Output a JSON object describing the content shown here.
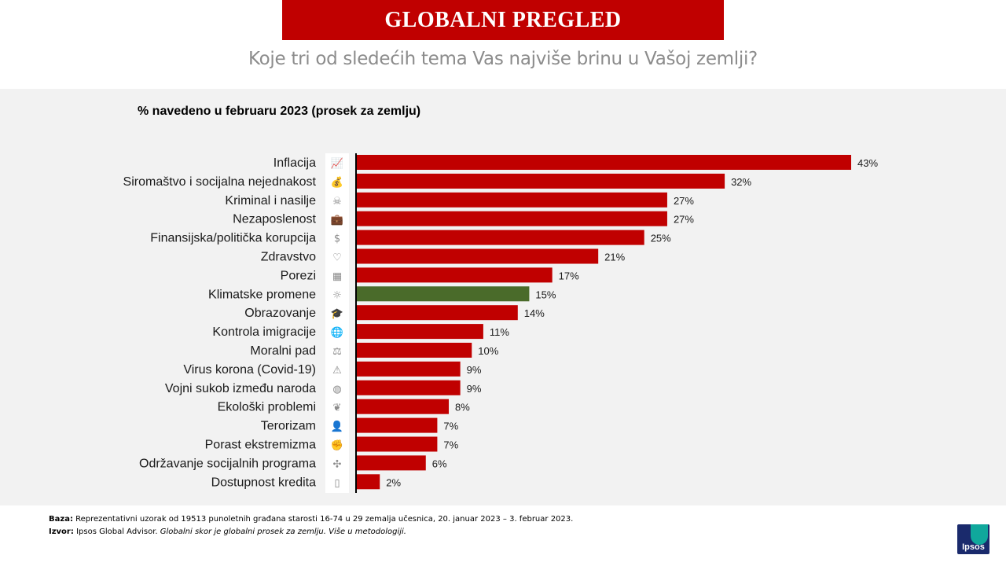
{
  "header": {
    "title": "GLOBALNI PREGLED",
    "subtitle": "Koje tri od sledećih tema Vas najviše brinu u Vašoj zemlji?"
  },
  "chart_data": {
    "type": "bar",
    "orientation": "horizontal",
    "title": "% navedeno u februaru 2023 (prosek za zemlju)",
    "categories": [
      "Inflacija",
      "Siromaštvo i socijalna nejednakost",
      "Kriminal i nasilje",
      "Nezaposlenost",
      "Finansijska/politička korupcija",
      "Zdravstvo",
      "Porezi",
      "Klimatske promene",
      "Obrazovanje",
      "Kontrola imigracije",
      "Moralni pad",
      "Virus korona (Covid-19)",
      "Vojni sukob između naroda",
      "Ekološki problemi",
      "Terorizam",
      "Porast ekstremizma",
      "Održavanje socijalnih programa",
      "Dostupnost kredita"
    ],
    "values": [
      43,
      32,
      27,
      27,
      25,
      21,
      17,
      15,
      14,
      11,
      10,
      9,
      9,
      8,
      7,
      7,
      6,
      2
    ],
    "value_labels": [
      "43%",
      "32%",
      "27%",
      "27%",
      "25%",
      "21%",
      "17%",
      "15%",
      "14%",
      "11%",
      "10%",
      "9%",
      "9%",
      "8%",
      "7%",
      "7%",
      "6%",
      "2%"
    ],
    "icons": [
      "line-chart-icon",
      "money-bag-icon",
      "skull-crossbones-icon",
      "briefcase-icon",
      "head-dollar-icon",
      "heart-stethoscope-icon",
      "calculator-icon",
      "sun-icon",
      "graduation-cap-icon",
      "globe-icon",
      "balance-figure-icon",
      "warning-triangle-icon",
      "earth-icon",
      "world-leaf-icon",
      "person-icon",
      "fist-icon",
      "hands-people-icon",
      "phone-card-icon"
    ],
    "xlim": [
      0,
      43
    ],
    "grid": false,
    "highlight_index": 7,
    "colors": {
      "bar": "#c00000",
      "highlight": "#4a6b2a"
    }
  },
  "footer": {
    "baza_label": "Baza:",
    "baza_text": "Reprezentativni uzorak od 19513 punoletnih građana starosti 16-74 u 29 zemalja učesnica, 20. januar 2023 – 3. februar 2023.",
    "izvor_label": "Izvor:",
    "izvor_text": "Ipsos Global Advisor.",
    "izvor_italic": "Globalni skor je globalni prosek za zemlju. Više u metodologiji."
  },
  "logo": {
    "text": "Ipsos"
  }
}
